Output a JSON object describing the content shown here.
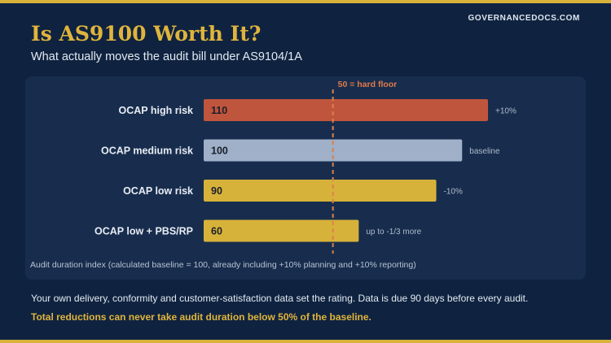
{
  "brand": "GOVERNANCEDOCS.COM",
  "title": "Is AS9100 Worth It?",
  "subtitle": "What actually moves the audit bill under AS9104/1A",
  "footnote": "Audit duration index (calculated baseline = 100, already including +10% planning and +10% reporting)",
  "note1": "Your own delivery, conformity and customer-satisfaction data set the rating. Data is due 90 days before every audit.",
  "note2": "Total reductions can never take audit duration below 50% of the baseline.",
  "colors": {
    "background": "#0f2340",
    "panel": "#182d4d",
    "accent": "#d8b23a",
    "high": "#c0553d",
    "baseline": "#9fb0c8",
    "reduced": "#d7b23a",
    "floor_line": "#d9824a"
  },
  "chart_data": {
    "type": "bar",
    "orientation": "horizontal",
    "categories": [
      "OCAP high risk",
      "OCAP medium risk",
      "OCAP low risk",
      "OCAP low + PBS/RP"
    ],
    "values": [
      110,
      100,
      90,
      60
    ],
    "value_labels": [
      "110",
      "100",
      "90",
      "60"
    ],
    "annotations": [
      "+10%",
      "baseline",
      "-10%",
      "up to -1/3 more"
    ],
    "bar_colors": [
      "#c0553d",
      "#9fb0c8",
      "#d7b23a",
      "#d7b23a"
    ],
    "reference_line": {
      "value": 50,
      "label": "50 = hard floor"
    },
    "xlim": [
      0,
      110
    ],
    "grid": false,
    "legend": "none"
  }
}
